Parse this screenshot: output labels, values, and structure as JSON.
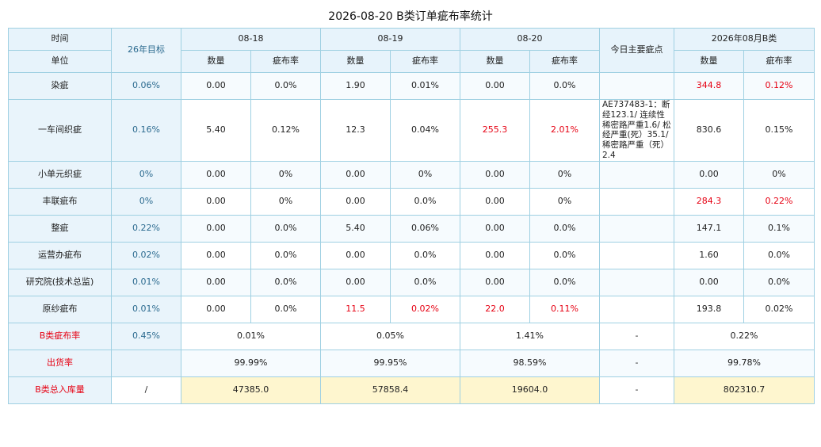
{
  "title": "2026-08-20 B类订单疵布率统计",
  "header": {
    "time_label": "时间",
    "unit_label": "单位",
    "target_label": "26年目标",
    "dates": [
      "08-18",
      "08-19",
      "08-20"
    ],
    "main_defect_label": "今日主要疵点",
    "month_label": "2026年08月B类",
    "qty_label": "数量",
    "rate_label": "疵布率"
  },
  "rows": [
    {
      "label": "染疵",
      "target": "0.06%",
      "d1": {
        "qty": "0.00",
        "rate": "0.0%"
      },
      "d2": {
        "qty": "1.90",
        "rate": "0.01%"
      },
      "d3": {
        "qty": "0.00",
        "rate": "0.0%"
      },
      "note": "",
      "month": {
        "qty": "344.8",
        "rate": "0.12%"
      }
    },
    {
      "label": "一车间织疵",
      "target": "0.16%",
      "d1": {
        "qty": "5.40",
        "rate": "0.12%"
      },
      "d2": {
        "qty": "12.3",
        "rate": "0.04%"
      },
      "d3": {
        "qty": "255.3",
        "rate": "2.01%"
      },
      "note": "AE737483-1：断经123.1/ 连续性稀密路严重1.6/ 松经严重(死）35.1/ 稀密路严重（死）2.4",
      "month": {
        "qty": "830.6",
        "rate": "0.15%"
      }
    },
    {
      "label": "小单元织疵",
      "target": "0%",
      "d1": {
        "qty": "0.00",
        "rate": "0%"
      },
      "d2": {
        "qty": "0.00",
        "rate": "0%"
      },
      "d3": {
        "qty": "0.00",
        "rate": "0%"
      },
      "note": "",
      "month": {
        "qty": "0.00",
        "rate": "0%"
      }
    },
    {
      "label": "丰联疵布",
      "target": "0%",
      "d1": {
        "qty": "0.00",
        "rate": "0%"
      },
      "d2": {
        "qty": "0.00",
        "rate": "0.0%"
      },
      "d3": {
        "qty": "0.00",
        "rate": "0%"
      },
      "note": "",
      "month": {
        "qty": "284.3",
        "rate": "0.22%"
      }
    },
    {
      "label": "整疵",
      "target": "0.22%",
      "d1": {
        "qty": "0.00",
        "rate": "0.0%"
      },
      "d2": {
        "qty": "5.40",
        "rate": "0.06%"
      },
      "d3": {
        "qty": "0.00",
        "rate": "0.0%"
      },
      "note": "",
      "month": {
        "qty": "147.1",
        "rate": "0.1%"
      }
    },
    {
      "label": "运营办疵布",
      "target": "0.02%",
      "d1": {
        "qty": "0.00",
        "rate": "0.0%"
      },
      "d2": {
        "qty": "0.00",
        "rate": "0.0%"
      },
      "d3": {
        "qty": "0.00",
        "rate": "0.0%"
      },
      "note": "",
      "month": {
        "qty": "1.60",
        "rate": "0.0%"
      }
    },
    {
      "label": "研究院(技术总监)",
      "target": "0.01%",
      "d1": {
        "qty": "0.00",
        "rate": "0.0%"
      },
      "d2": {
        "qty": "0.00",
        "rate": "0.0%"
      },
      "d3": {
        "qty": "0.00",
        "rate": "0.0%"
      },
      "note": "",
      "month": {
        "qty": "0.00",
        "rate": "0.0%"
      }
    },
    {
      "label": "原纱疵布",
      "target": "0.01%",
      "d1": {
        "qty": "0.00",
        "rate": "0.0%"
      },
      "d2": {
        "qty": "11.5",
        "rate": "0.02%"
      },
      "d3": {
        "qty": "22.0",
        "rate": "0.11%"
      },
      "note": "",
      "month": {
        "qty": "193.8",
        "rate": "0.02%"
      }
    }
  ],
  "summary": [
    {
      "label": "B类疵布率",
      "target": "0.45%",
      "d1": "0.01%",
      "d2": "0.05%",
      "d3": "1.41%",
      "note": "-",
      "month": "0.22%"
    },
    {
      "label": "出货率",
      "target": "",
      "d1": "99.99%",
      "d2": "99.95%",
      "d3": "98.59%",
      "note": "-",
      "month": "99.78%"
    },
    {
      "label": "B类总入库量",
      "target": "/",
      "d1": "47385.0",
      "d2": "57858.4",
      "d3": "19604.0",
      "note": "-",
      "month": "802310.7"
    }
  ],
  "colors": {
    "highlight": "#e60012",
    "header_bg": "#e7f3fb",
    "total_bg": "#fef6cf"
  }
}
